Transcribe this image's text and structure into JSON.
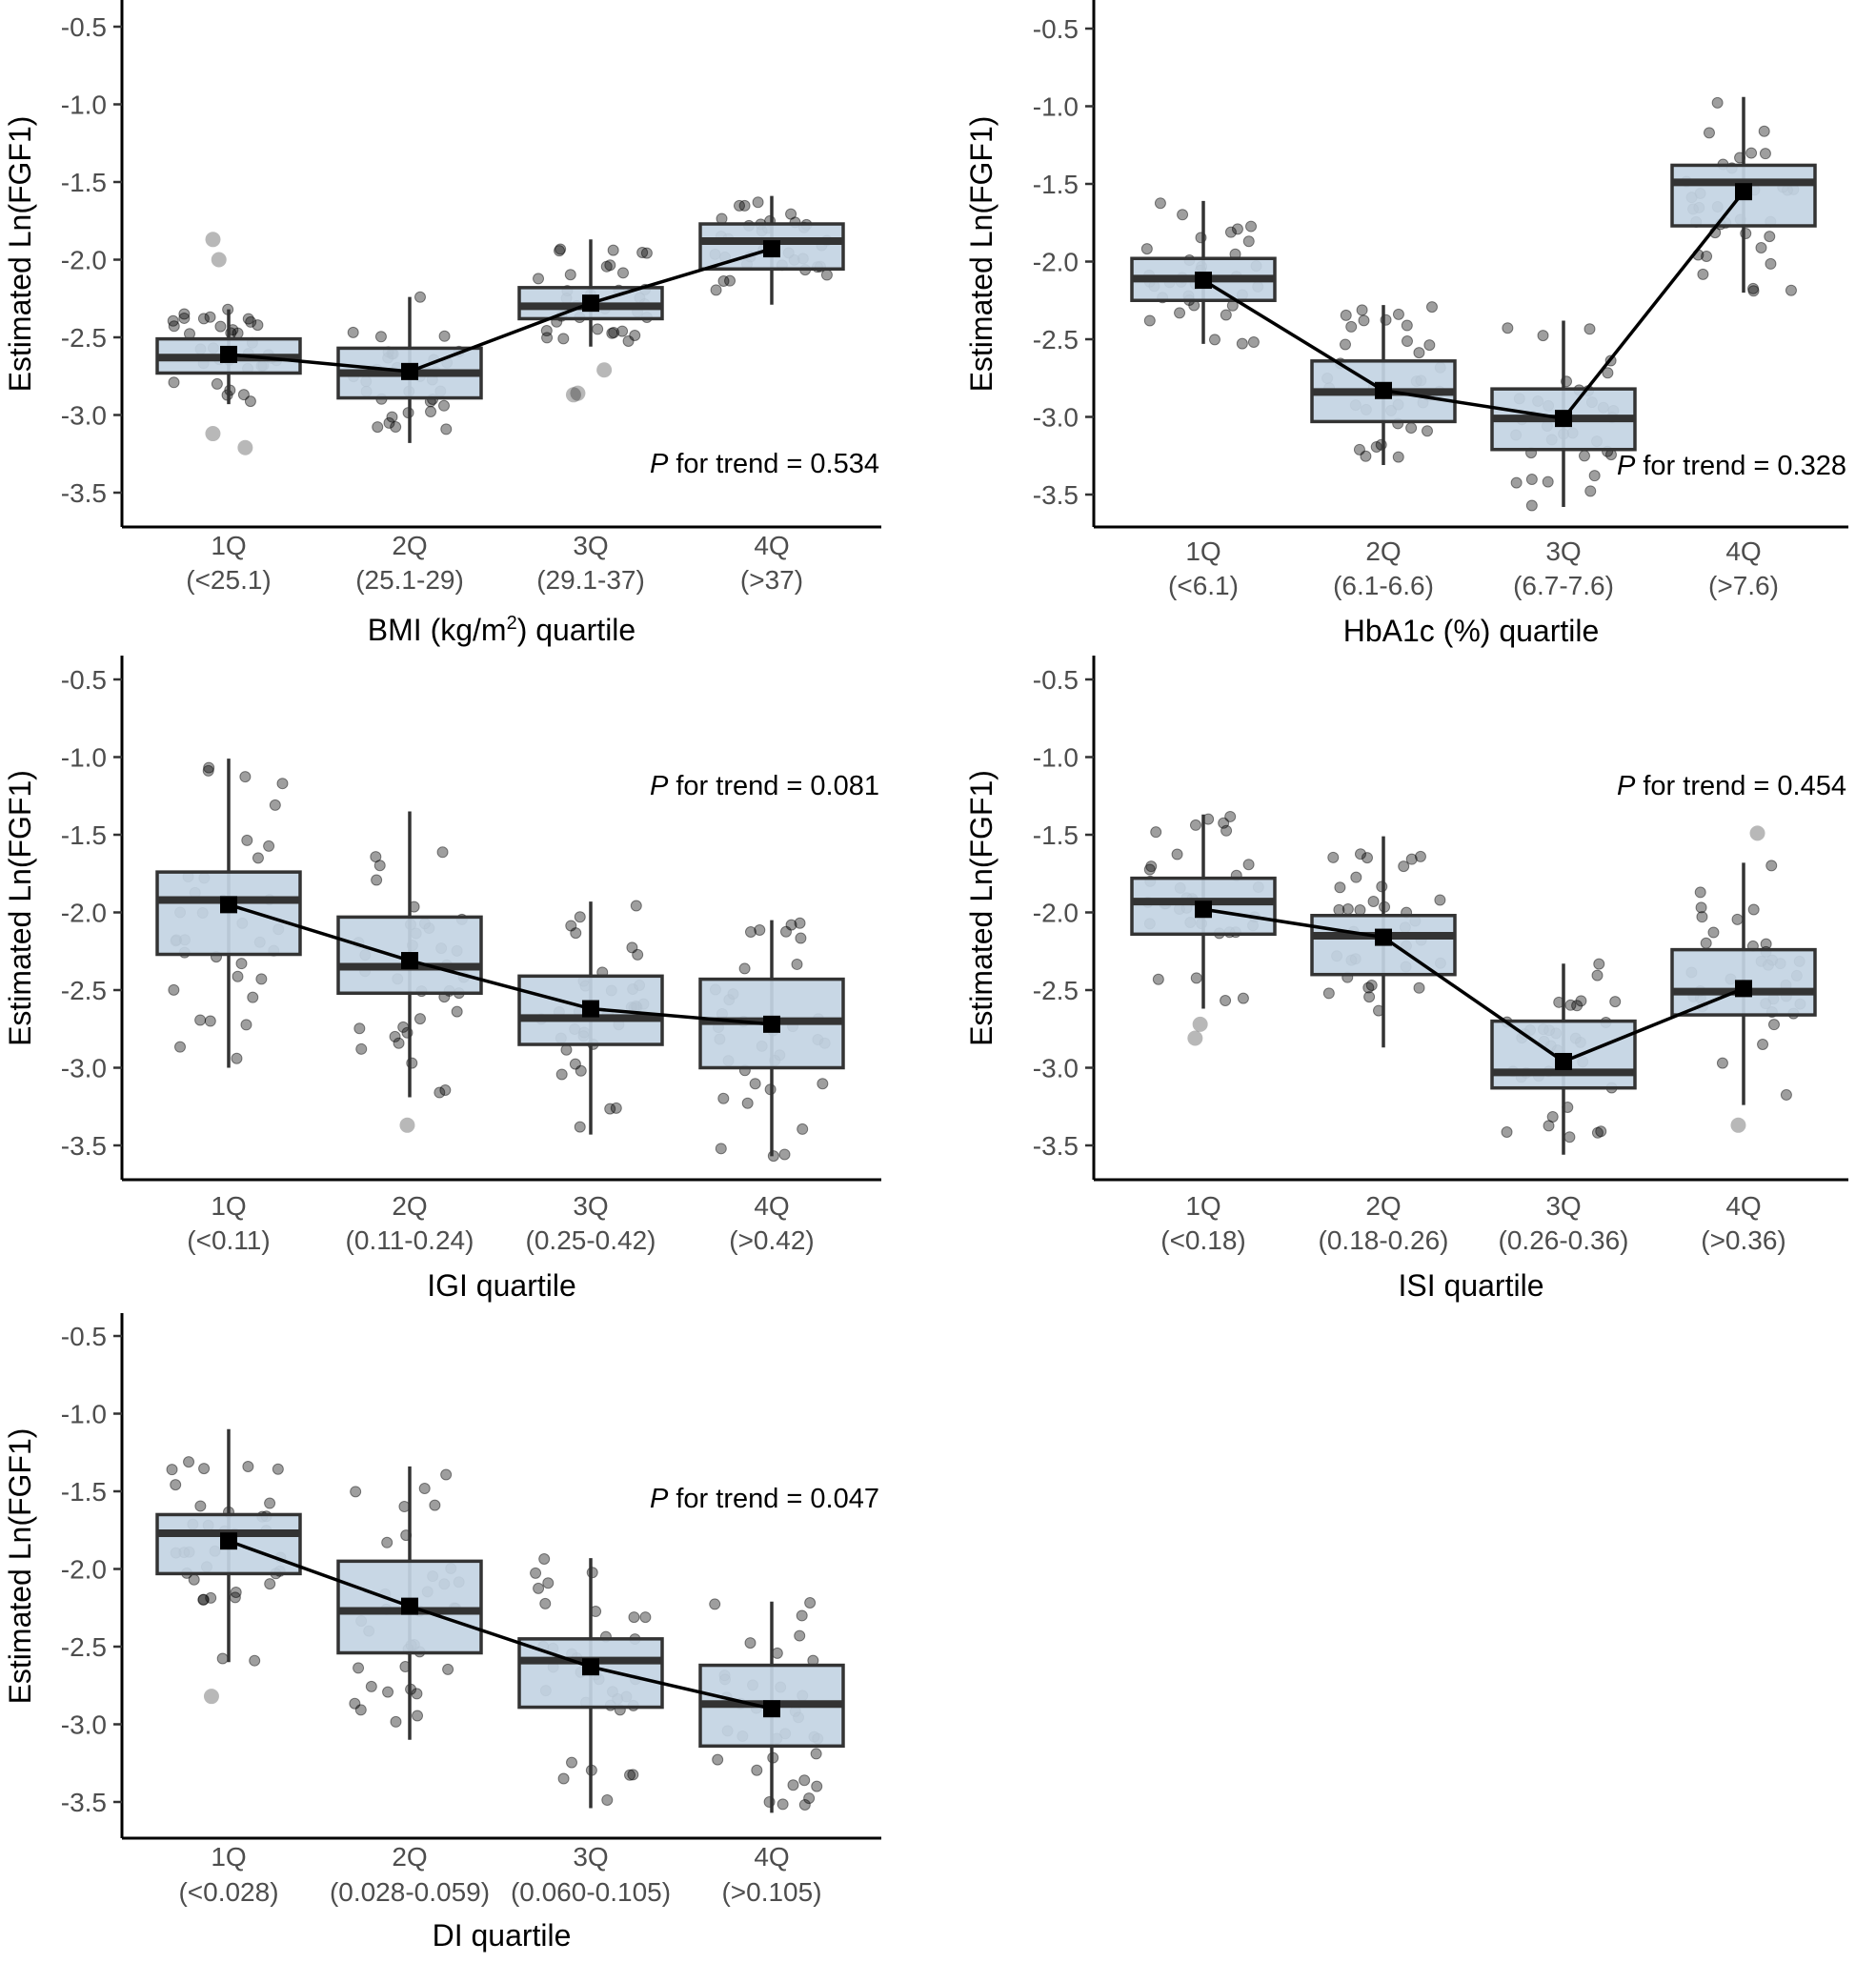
{
  "colors": {
    "box_fill": "#c3d4e3",
    "box_stroke": "#333333",
    "point_fill": "#000000",
    "line": "#000000"
  },
  "ylabel": "Estimated Ln(FGF1)",
  "y_ticks": [
    "-0.5",
    "-1.0",
    "-1.5",
    "-2.0",
    "-2.5",
    "-3.0",
    "-3.5"
  ],
  "chart_data": [
    {
      "type": "box",
      "xlabel": "BMI (kg/m²) quartile",
      "xlabel_main": "BMI (kg/m",
      "xlabel_sup": "2",
      "xlabel_tail": ") quartile",
      "ylabel": "Estimated Ln(FGF1)",
      "ylim": [
        -3.75,
        -0.4
      ],
      "p_trend": {
        "p": "P",
        "rest": " for trend = 0.534",
        "position": "bottom-right"
      },
      "categories": [
        {
          "name": "1Q",
          "range": "(<25.1)",
          "whisker_low": -2.93,
          "q1": -2.73,
          "median": -2.63,
          "q3": -2.51,
          "whisker_high": -2.32,
          "mean": -2.61,
          "outliers": [
            -3.12,
            -3.21,
            -1.87,
            -2.0
          ]
        },
        {
          "name": "2Q",
          "range": "(25.1-29)",
          "whisker_low": -3.18,
          "q1": -2.89,
          "median": -2.73,
          "q3": -2.57,
          "whisker_high": -2.24,
          "mean": -2.72,
          "outliers": []
        },
        {
          "name": "3Q",
          "range": "(29.1-37)",
          "whisker_low": -2.56,
          "q1": -2.38,
          "median": -2.3,
          "q3": -2.18,
          "whisker_high": -1.87,
          "mean": -2.28,
          "outliers": [
            -2.87,
            -2.86,
            -2.71
          ]
        },
        {
          "name": "4Q",
          "range": "(>37)",
          "whisker_low": -2.29,
          "q1": -2.06,
          "median": -1.88,
          "q3": -1.77,
          "whisker_high": -1.59,
          "mean": -1.93,
          "outliers": []
        }
      ]
    },
    {
      "type": "box",
      "xlabel": "HbA1c (%) quartile",
      "xlabel_main": "HbA1c (%) quartile",
      "xlabel_sup": "",
      "xlabel_tail": "",
      "ylabel": "Estimated Ln(FGF1)",
      "ylim": [
        -3.75,
        -0.4
      ],
      "p_trend": {
        "p": "P",
        "rest": " for trend = 0.328",
        "position": "bottom-right"
      },
      "categories": [
        {
          "name": "1Q",
          "range": "(<6.1)",
          "whisker_low": -2.53,
          "q1": -2.25,
          "median": -2.11,
          "q3": -1.98,
          "whisker_high": -1.61,
          "mean": -2.12,
          "outliers": []
        },
        {
          "name": "2Q",
          "range": "(6.1-6.6)",
          "whisker_low": -3.31,
          "q1": -3.03,
          "median": -2.84,
          "q3": -2.64,
          "whisker_high": -2.28,
          "mean": -2.83,
          "outliers": []
        },
        {
          "name": "3Q",
          "range": "(6.7-7.6)",
          "whisker_low": -3.58,
          "q1": -3.21,
          "median": -3.01,
          "q3": -2.82,
          "whisker_high": -2.38,
          "mean": -3.01,
          "outliers": []
        },
        {
          "name": "4Q",
          "range": "(>7.6)",
          "whisker_low": -2.2,
          "q1": -1.77,
          "median": -1.49,
          "q3": -1.38,
          "whisker_high": -0.94,
          "mean": -1.55,
          "outliers": []
        }
      ]
    },
    {
      "type": "box",
      "xlabel": "IGI quartile",
      "xlabel_main": "IGI quartile",
      "xlabel_sup": "",
      "xlabel_tail": "",
      "ylabel": "Estimated Ln(FGF1)",
      "ylim": [
        -3.75,
        -0.4
      ],
      "p_trend": {
        "p": "P",
        "rest": " for trend = 0.081",
        "position": "top-right"
      },
      "categories": [
        {
          "name": "1Q",
          "range": "(<0.11)",
          "whisker_low": -3.0,
          "q1": -2.27,
          "median": -1.92,
          "q3": -1.74,
          "whisker_high": -1.01,
          "mean": -1.95,
          "outliers": []
        },
        {
          "name": "2Q",
          "range": "(0.11-0.24)",
          "whisker_low": -3.19,
          "q1": -2.52,
          "median": -2.35,
          "q3": -2.03,
          "whisker_high": -1.35,
          "mean": -2.31,
          "outliers": [
            -3.37
          ]
        },
        {
          "name": "3Q",
          "range": "(0.25-0.42)",
          "whisker_low": -3.43,
          "q1": -2.85,
          "median": -2.68,
          "q3": -2.41,
          "whisker_high": -1.93,
          "mean": -2.62,
          "outliers": []
        },
        {
          "name": "4Q",
          "range": "(>0.42)",
          "whisker_low": -3.57,
          "q1": -3.0,
          "median": -2.7,
          "q3": -2.43,
          "whisker_high": -2.05,
          "mean": -2.72,
          "outliers": []
        }
      ]
    },
    {
      "type": "box",
      "xlabel": "ISI quartile",
      "xlabel_main": "ISI quartile",
      "xlabel_sup": "",
      "xlabel_tail": "",
      "ylabel": "Estimated Ln(FGF1)",
      "ylim": [
        -3.75,
        -0.4
      ],
      "p_trend": {
        "p": "P",
        "rest": " for trend = 0.454",
        "position": "top-right"
      },
      "categories": [
        {
          "name": "1Q",
          "range": "(<0.18)",
          "whisker_low": -2.62,
          "q1": -2.14,
          "median": -1.93,
          "q3": -1.78,
          "whisker_high": -1.37,
          "mean": -1.98,
          "outliers": [
            -2.72,
            -2.81
          ]
        },
        {
          "name": "2Q",
          "range": "(0.18-0.26)",
          "whisker_low": -2.87,
          "q1": -2.4,
          "median": -2.15,
          "q3": -2.02,
          "whisker_high": -1.51,
          "mean": -2.16,
          "outliers": []
        },
        {
          "name": "3Q",
          "range": "(0.26-0.36)",
          "whisker_low": -3.56,
          "q1": -3.13,
          "median": -3.03,
          "q3": -2.7,
          "whisker_high": -2.33,
          "mean": -2.96,
          "outliers": []
        },
        {
          "name": "4Q",
          "range": "(>0.36)",
          "whisker_low": -3.24,
          "q1": -2.66,
          "median": -2.51,
          "q3": -2.24,
          "whisker_high": -1.68,
          "mean": -2.49,
          "outliers": [
            -1.49,
            -3.37
          ]
        }
      ]
    },
    {
      "type": "box",
      "xlabel": "DI quartile",
      "xlabel_main": "DI quartile",
      "xlabel_sup": "",
      "xlabel_tail": "",
      "ylabel": "Estimated Ln(FGF1)",
      "ylim": [
        -3.75,
        -0.4
      ],
      "p_trend": {
        "p": "P",
        "rest": " for trend = 0.047",
        "position": "top-right"
      },
      "categories": [
        {
          "name": "1Q",
          "range": "(<0.028)",
          "whisker_low": -2.6,
          "q1": -2.03,
          "median": -1.77,
          "q3": -1.65,
          "whisker_high": -1.1,
          "mean": -1.82,
          "outliers": [
            -2.82
          ]
        },
        {
          "name": "2Q",
          "range": "(0.028-0.059)",
          "whisker_low": -3.1,
          "q1": -2.54,
          "median": -2.27,
          "q3": -1.95,
          "whisker_high": -1.34,
          "mean": -2.24,
          "outliers": []
        },
        {
          "name": "3Q",
          "range": "(0.060-0.105)",
          "whisker_low": -3.54,
          "q1": -2.89,
          "median": -2.59,
          "q3": -2.45,
          "whisker_high": -1.93,
          "mean": -2.63,
          "outliers": []
        },
        {
          "name": "4Q",
          "range": "(>0.105)",
          "whisker_low": -3.57,
          "q1": -3.14,
          "median": -2.87,
          "q3": -2.62,
          "whisker_high": -2.21,
          "mean": -2.9,
          "outliers": []
        }
      ]
    }
  ]
}
